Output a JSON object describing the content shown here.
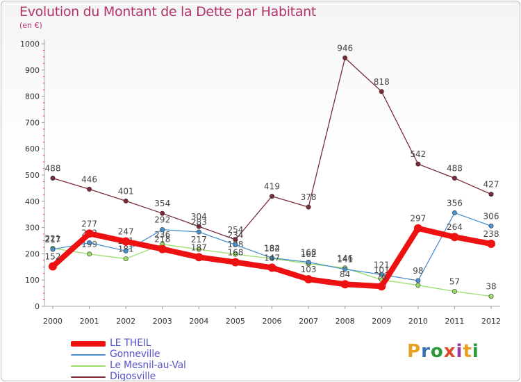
{
  "title": "Evolution du Montant de la Dette par Habitant",
  "unit": "(en €)",
  "logo": {
    "text": "Proxiti",
    "colors": [
      "#e8a020",
      "#3a6fb5",
      "#2a9a3a",
      "#d94a2a",
      "#9a3aa0",
      "#e8a020",
      "#2a9a3a"
    ]
  },
  "chart_data": {
    "type": "line",
    "x": [
      2000,
      2001,
      2002,
      2003,
      2004,
      2005,
      2006,
      2007,
      2008,
      2009,
      2010,
      2011,
      2012
    ],
    "ylim": [
      0,
      1000
    ],
    "yticks": [
      0,
      100,
      200,
      300,
      400,
      500,
      600,
      700,
      800,
      900,
      1000
    ],
    "grid": false,
    "legend_position": "bottom-left",
    "series": [
      {
        "name": "Digosville",
        "color": "#7a2a35",
        "values": [
          488,
          446,
          401,
          354,
          304,
          254,
          419,
          378,
          946,
          818,
          542,
          488,
          427
        ],
        "labels": [
          "488",
          "446",
          "401",
          "354",
          "304",
          "254",
          "419",
          "378",
          "946",
          "818",
          "542",
          "488",
          "427"
        ]
      },
      {
        "name": "Le Mesnil-au-Val",
        "color": "#99dd66",
        "values": [
          221,
          199,
          181,
          236,
          217,
          198,
          182,
          162,
          146,
          101,
          80,
          57,
          38
        ],
        "labels": [
          "221",
          "199",
          "181",
          "236",
          "217",
          "198",
          "182",
          "162",
          "146",
          "101",
          "",
          "57",
          "38"
        ]
      },
      {
        "name": "Gonneville",
        "color": "#4a90cc",
        "values": [
          217,
          242,
          211,
          292,
          283,
          234,
          184,
          168,
          141,
          121,
          98,
          356,
          306
        ],
        "labels": [
          "217",
          "242",
          "211",
          "292",
          "283",
          "234",
          "184",
          "168",
          "141",
          "121",
          "98",
          "356",
          "306"
        ]
      },
      {
        "name": "LE THEIL",
        "color": "#ee1111",
        "values": [
          152,
          277,
          247,
          218,
          187,
          168,
          147,
          103,
          84,
          76,
          297,
          264,
          238
        ],
        "labels": [
          "152",
          "277",
          "247",
          "218",
          "187",
          "168",
          "147",
          "103",
          "84",
          "76",
          "297",
          "264",
          "238"
        ]
      }
    ],
    "legend": [
      "LE THEIL",
      "Gonneville",
      "Le Mesnil-au-Val",
      "Digosville"
    ]
  }
}
